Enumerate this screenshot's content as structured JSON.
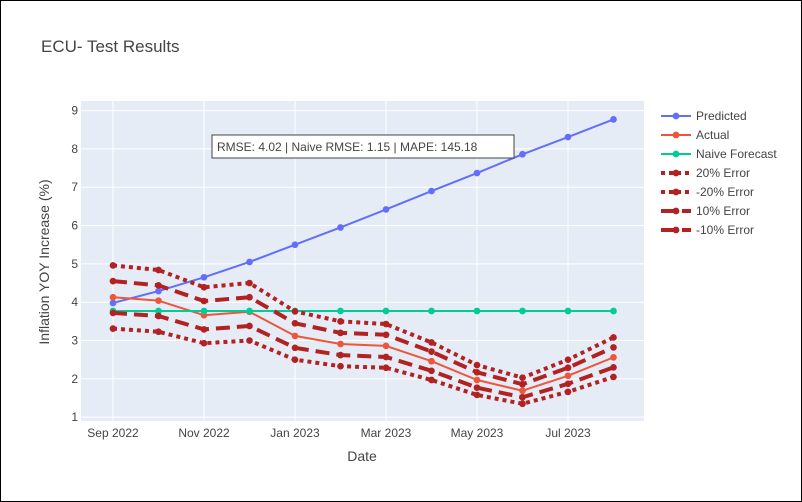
{
  "chart_data": {
    "type": "line",
    "title": "ECU- Test Results",
    "xlabel": "Date",
    "ylabel": "Inflation YOY Increase (%)",
    "x": [
      "2022-09",
      "2022-10",
      "2022-11",
      "2022-12",
      "2023-01",
      "2023-02",
      "2023-03",
      "2023-04",
      "2023-05",
      "2023-06",
      "2023-07",
      "2023-08"
    ],
    "xticks": [
      {
        "label": "Sep 2022",
        "x": "2022-09"
      },
      {
        "label": "Nov 2022",
        "x": "2022-11"
      },
      {
        "label": "Jan 2023",
        "x": "2023-01"
      },
      {
        "label": "Mar 2023",
        "x": "2023-03"
      },
      {
        "label": "May 2023",
        "x": "2023-05"
      },
      {
        "label": "Jul 2023",
        "x": "2023-07"
      }
    ],
    "ylim": [
      0.9,
      9.25
    ],
    "yticks": [
      "1",
      "2",
      "3",
      "4",
      "5",
      "6",
      "7",
      "8",
      "9"
    ],
    "grid": true,
    "legend_position": "right",
    "annotation": "RMSE: 4.02 | Naive RMSE: 1.15 | MAPE: 145.18",
    "series": [
      {
        "name": "Predicted",
        "color": "#636efa",
        "dash": "solid",
        "width": 2,
        "marker": 4.5,
        "values": [
          3.98,
          4.29,
          4.65,
          5.05,
          5.5,
          5.95,
          6.42,
          6.9,
          7.37,
          7.86,
          8.31,
          8.77
        ]
      },
      {
        "name": "Actual",
        "color": "#ef553b",
        "dash": "solid",
        "width": 2,
        "marker": 4.5,
        "values": [
          4.13,
          4.04,
          3.66,
          3.75,
          3.12,
          2.91,
          2.86,
          2.46,
          1.97,
          1.69,
          2.08,
          2.56
        ]
      },
      {
        "name": "Naive Forecast",
        "color": "#00cc96",
        "dash": "solid",
        "width": 2,
        "marker": 4.5,
        "values": [
          3.77,
          3.77,
          3.77,
          3.77,
          3.77,
          3.77,
          3.77,
          3.77,
          3.77,
          3.77,
          3.77,
          3.77
        ]
      },
      {
        "name": "20% Error",
        "color": "#b22222",
        "dash": "dot",
        "width": 4,
        "marker": 4.5,
        "values": [
          4.96,
          4.84,
          4.39,
          4.5,
          3.76,
          3.5,
          3.43,
          2.95,
          2.36,
          2.03,
          2.5,
          3.08
        ]
      },
      {
        "name": "-20% Error",
        "color": "#b22222",
        "dash": "dot",
        "width": 4,
        "marker": 4.5,
        "values": [
          3.31,
          3.23,
          2.93,
          3.0,
          2.5,
          2.33,
          2.29,
          1.97,
          1.58,
          1.35,
          1.66,
          2.05
        ]
      },
      {
        "name": "10% Error",
        "color": "#b22222",
        "dash": "dash",
        "width": 4,
        "marker": 4.5,
        "values": [
          4.55,
          4.44,
          4.03,
          4.13,
          3.45,
          3.2,
          3.15,
          2.71,
          2.17,
          1.86,
          2.29,
          2.82
        ]
      },
      {
        "name": "-10% Error",
        "color": "#b22222",
        "dash": "dash",
        "width": 4,
        "marker": 4.5,
        "values": [
          3.72,
          3.64,
          3.29,
          3.38,
          2.81,
          2.62,
          2.57,
          2.21,
          1.77,
          1.52,
          1.87,
          2.3
        ]
      }
    ]
  }
}
